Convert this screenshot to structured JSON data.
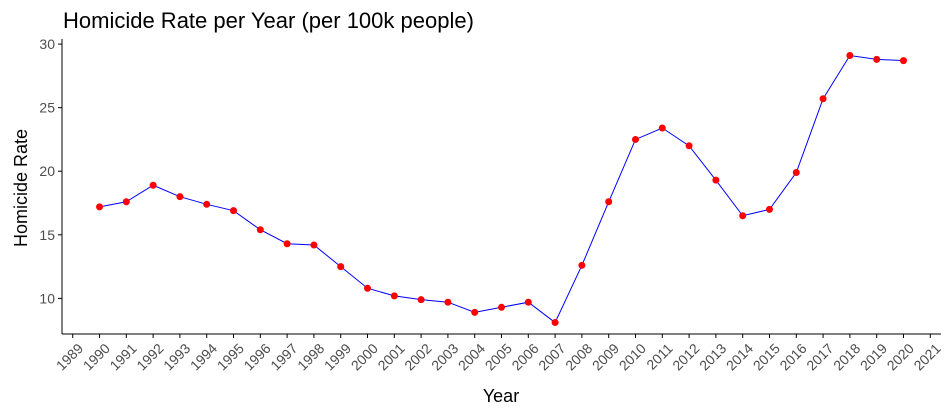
{
  "chart_data": {
    "type": "line",
    "title": "Homicide Rate per Year (per 100k people)",
    "xlabel": "Year",
    "ylabel": "Homicide Rate",
    "x_ticks": [
      "1989",
      "1990",
      "1991",
      "1992",
      "1993",
      "1994",
      "1995",
      "1996",
      "1997",
      "1998",
      "1999",
      "2000",
      "2001",
      "2002",
      "2003",
      "2004",
      "2005",
      "2006",
      "2007",
      "2008",
      "2009",
      "2010",
      "2011",
      "2012",
      "2013",
      "2014",
      "2015",
      "2016",
      "2017",
      "2018",
      "2019",
      "2020",
      "2021"
    ],
    "y_ticks": [
      "10",
      "15",
      "20",
      "25",
      "30"
    ],
    "xlim": [
      1988.6,
      2021.4
    ],
    "ylim": [
      7.2,
      30.4
    ],
    "grid": false,
    "series": [
      {
        "x": [
          1990,
          1991,
          1992,
          1993,
          1994,
          1995,
          1996,
          1997,
          1998,
          1999,
          2000,
          2001,
          2002,
          2003,
          2004,
          2005,
          2006,
          2007,
          2008,
          2009,
          2010,
          2011,
          2012,
          2013,
          2014,
          2015,
          2016,
          2017,
          2018,
          2019,
          2020
        ],
        "y": [
          17.2,
          17.6,
          18.9,
          18.0,
          17.4,
          16.9,
          15.4,
          14.3,
          14.2,
          12.5,
          10.8,
          10.2,
          9.9,
          9.7,
          8.9,
          9.3,
          9.7,
          8.1,
          12.6,
          17.6,
          22.5,
          23.4,
          22.0,
          19.3,
          16.5,
          17.0,
          19.9,
          25.7,
          29.1,
          28.8,
          28.7
        ]
      }
    ],
    "colors": {
      "line": "#0000ff",
      "point": "#ff0000",
      "axis": "#000000",
      "tick_label": "#4d4d4d"
    }
  }
}
